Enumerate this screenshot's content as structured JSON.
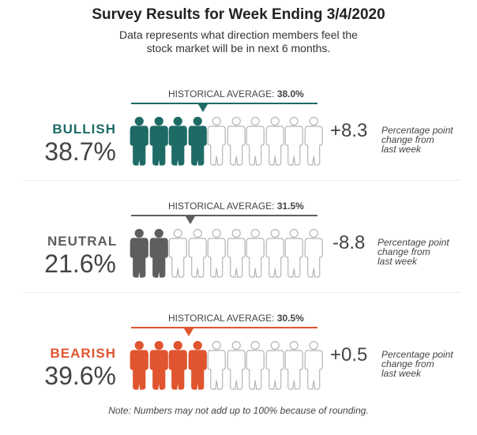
{
  "title": "Survey Results for Week Ending 3/4/2020",
  "subtitle_line1": "Data represents what direction members feel the",
  "subtitle_line2": "stock market will be in next 6 months.",
  "historical_prefix": "HISTORICAL AVERAGE:",
  "change_label_line1": "Percentage point",
  "change_label_line2": "change from",
  "change_label_line3": "last week",
  "note": "Note: Numbers may not add up to 100% because of rounding.",
  "chart_data": {
    "type": "pictograph",
    "title": "Survey Results for Week Ending 3/4/2020",
    "unit": "percent",
    "icons_per_row": 10,
    "categories": [
      {
        "name": "BULLISH",
        "value_label": "38.7%",
        "value": 38.7,
        "historical_average_label": "38.0%",
        "historical_average": 38.0,
        "change_label": "+8.3",
        "change": 8.3,
        "color": "#1e6b66",
        "filled_icons": 4
      },
      {
        "name": "NEUTRAL",
        "value_label": "21.6%",
        "value": 21.6,
        "historical_average_label": "31.5%",
        "historical_average": 31.5,
        "change_label": "-8.8",
        "change": -8.8,
        "color": "#5e5e5e",
        "filled_icons": 2
      },
      {
        "name": "BEARISH",
        "value_label": "39.6%",
        "value": 39.6,
        "historical_average_label": "30.5%",
        "historical_average": 30.5,
        "change_label": "+0.5",
        "change": 0.5,
        "color": "#e0552f",
        "filled_icons": 4
      }
    ]
  }
}
